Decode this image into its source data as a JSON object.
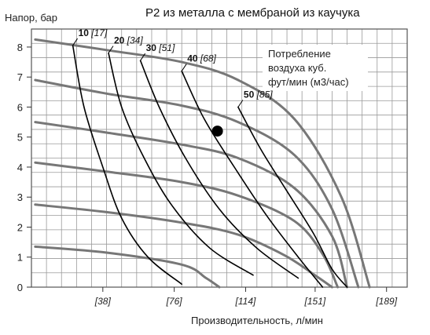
{
  "chart_data": {
    "type": "line",
    "title": "P2 из металла с мембраной из каучука",
    "ylabel": "Напор, бар",
    "xlabel": "Производительность, л/мин",
    "ylim": [
      0,
      8.6
    ],
    "xlim": [
      0,
      200
    ],
    "y_ticks": [
      0,
      1,
      2,
      3,
      4,
      5,
      6,
      7,
      8
    ],
    "x_ticks": [
      {
        "value": 38,
        "label": "[38]"
      },
      {
        "value": 76,
        "label": "[76]"
      },
      {
        "value": 114,
        "label": "[114]"
      },
      {
        "value": 151,
        "label": "[151]"
      },
      {
        "value": 189,
        "label": "[189]"
      }
    ],
    "grid": true,
    "note_lines": [
      "Потребление",
      "воздуха куб.",
      "фут/мин (м3/час)"
    ],
    "pressure_curves": [
      {
        "points": [
          [
            2,
            8.25
          ],
          [
            40,
            7.9
          ],
          [
            80,
            7.5
          ],
          [
            110,
            6.9
          ],
          [
            140,
            5.6
          ],
          [
            165,
            3.0
          ],
          [
            180,
            0
          ]
        ]
      },
      {
        "points": [
          [
            2,
            6.9
          ],
          [
            40,
            6.45
          ],
          [
            80,
            6.05
          ],
          [
            110,
            5.5
          ],
          [
            140,
            4.4
          ],
          [
            160,
            2.6
          ],
          [
            174,
            0
          ]
        ]
      },
      {
        "points": [
          [
            2,
            5.5
          ],
          [
            40,
            5.15
          ],
          [
            80,
            4.75
          ],
          [
            110,
            4.3
          ],
          [
            140,
            3.3
          ],
          [
            160,
            1.7
          ],
          [
            168,
            0
          ]
        ]
      },
      {
        "points": [
          [
            2,
            4.15
          ],
          [
            40,
            3.85
          ],
          [
            80,
            3.5
          ],
          [
            110,
            3.05
          ],
          [
            140,
            2.2
          ],
          [
            155,
            1.1
          ],
          [
            163,
            0
          ]
        ]
      },
      {
        "points": [
          [
            2,
            2.75
          ],
          [
            40,
            2.5
          ],
          [
            80,
            2.15
          ],
          [
            110,
            1.75
          ],
          [
            135,
            1.05
          ],
          [
            152,
            0.35
          ],
          [
            160,
            0
          ]
        ]
      },
      {
        "points": [
          [
            2,
            1.35
          ],
          [
            40,
            1.15
          ],
          [
            80,
            0.75
          ],
          [
            93,
            0.3
          ],
          [
            100,
            0
          ]
        ]
      }
    ],
    "air_curves": [
      {
        "main": "10",
        "alt": "[17]",
        "points": [
          [
            22,
            8.05
          ],
          [
            28,
            6.0
          ],
          [
            38,
            4.0
          ],
          [
            48,
            2.3
          ],
          [
            62,
            1.0
          ],
          [
            80,
            0.1
          ]
        ]
      },
      {
        "main": "20",
        "alt": "[34]",
        "points": [
          [
            41,
            7.8
          ],
          [
            48,
            6.0
          ],
          [
            60,
            4.3
          ],
          [
            75,
            2.7
          ],
          [
            95,
            1.3
          ],
          [
            118,
            0.4
          ]
        ]
      },
      {
        "main": "30",
        "alt": "[51]",
        "points": [
          [
            58,
            7.55
          ],
          [
            68,
            6.0
          ],
          [
            82,
            4.3
          ],
          [
            100,
            2.6
          ],
          [
            120,
            1.3
          ],
          [
            142,
            0.3
          ]
        ]
      },
      {
        "main": "40",
        "alt": "[68]",
        "points": [
          [
            80,
            7.2
          ],
          [
            92,
            5.6
          ],
          [
            108,
            4.0
          ],
          [
            125,
            2.4
          ],
          [
            142,
            1.0
          ],
          [
            155,
            0
          ]
        ]
      },
      {
        "main": "50",
        "alt": "[85]",
        "points": [
          [
            110,
            6.0
          ],
          [
            122,
            4.6
          ],
          [
            136,
            3.2
          ],
          [
            150,
            1.8
          ],
          [
            160,
            0.6
          ],
          [
            168,
            0
          ]
        ]
      }
    ],
    "marker_point": {
      "x": 99,
      "y": 5.2
    }
  }
}
